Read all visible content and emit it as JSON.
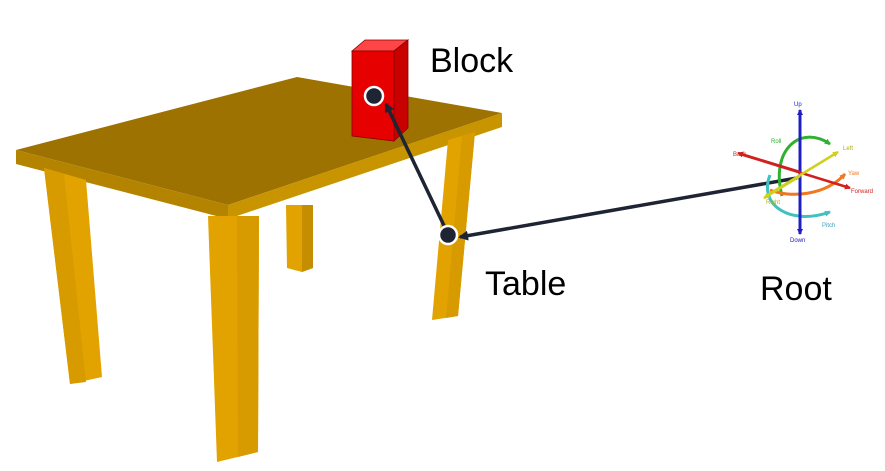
{
  "labels": {
    "block": "Block",
    "table": "Table",
    "root": "Root"
  },
  "axes": {
    "up": "Up",
    "down": "Down",
    "back": "Back",
    "forward": "Forward",
    "left": "Left",
    "right": "Right",
    "roll": "Roll",
    "pitch": "Pitch",
    "yaw": "Yaw"
  },
  "colors": {
    "table_top": "#9e7200",
    "table_leg": "#e2a300",
    "block_front": "#e60000",
    "block_side": "#c80000",
    "block_top": "#ff4545",
    "arrow": "#1e2433",
    "axis_up_down": "#2020c0",
    "axis_back_forward": "#d02020",
    "axis_left_right": "#d0d020",
    "roll": "#30b030",
    "pitch": "#40c0c0",
    "yaw": "#f07820"
  }
}
